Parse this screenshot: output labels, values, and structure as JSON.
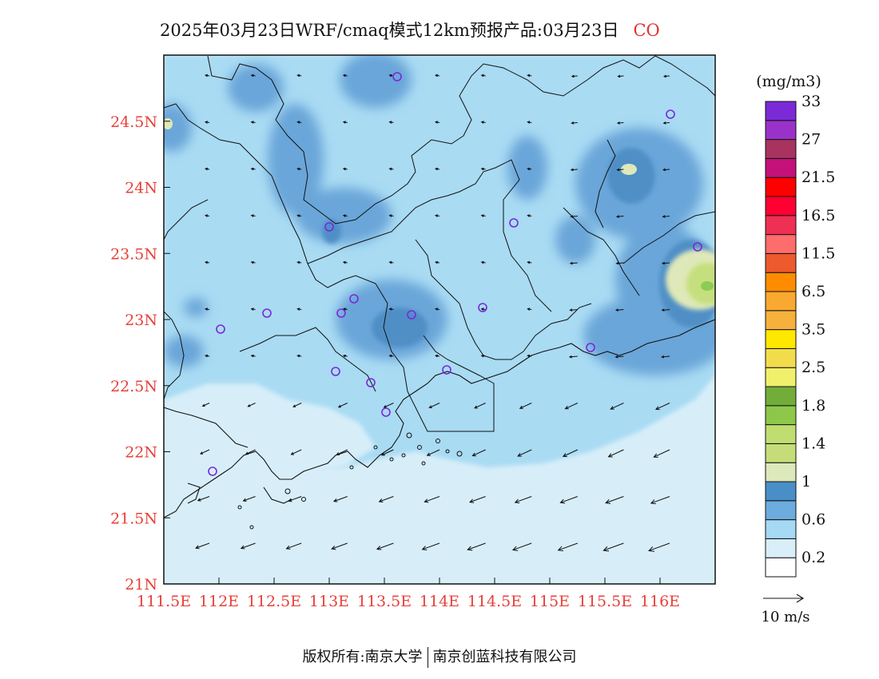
{
  "header": {
    "title": "2025年03月23日WRF/cmaq模式12km预报产品:03月23日",
    "species": "CO"
  },
  "map": {
    "lon_ticks": [
      "111.5E",
      "112E",
      "112.5E",
      "113E",
      "113.5E",
      "114E",
      "114.5E",
      "115E",
      "115.5E",
      "116E"
    ],
    "lat_ticks": [
      "21N",
      "21.5N",
      "22N",
      "22.5N",
      "23N",
      "23.5N",
      "24N",
      "24.5N"
    ],
    "lon_range": [
      111.5,
      116.5
    ],
    "lat_range": [
      21.0,
      25.0
    ],
    "field_colors": {
      "sea": "#d7eef9",
      "land_low": "#a9dbf3",
      "land_mid": "#8cc6ea",
      "land_high": "#6aa6d9",
      "peak": "#4f8fc6",
      "hot_1": "#dfe8b8",
      "hot_2": "#c5df7e",
      "hot_3": "#8ccc55"
    }
  },
  "colorbar": {
    "unit": "(mg/m3)",
    "colors": [
      "#ffffff",
      "#d8eef9",
      "#a6d9f4",
      "#6cacde",
      "#4a8ec7",
      "#dde8bb",
      "#c5dd78",
      "#c0de70",
      "#8dc84b",
      "#72ad3a",
      "#f0f06c",
      "#f3dc4c",
      "#ffe800",
      "#f6b13c",
      "#f9a830",
      "#ff8c00",
      "#ec5a2d",
      "#ff6c6c",
      "#f02f55",
      "#ff0033",
      "#ff0000",
      "#c4117a",
      "#a8335f",
      "#9a32c9",
      "#7b2ad8"
    ],
    "labels": [
      "0.2",
      "0.6",
      "1",
      "1.4",
      "1.8",
      "2.5",
      "3.5",
      "6.5",
      "11.5",
      "16.5",
      "21.5",
      "27",
      "33"
    ]
  },
  "wind_legend": {
    "label": "10 m/s"
  },
  "footer": {
    "left": "版权所有:南京大学",
    "right": "南京创蓝科技有限公司"
  }
}
